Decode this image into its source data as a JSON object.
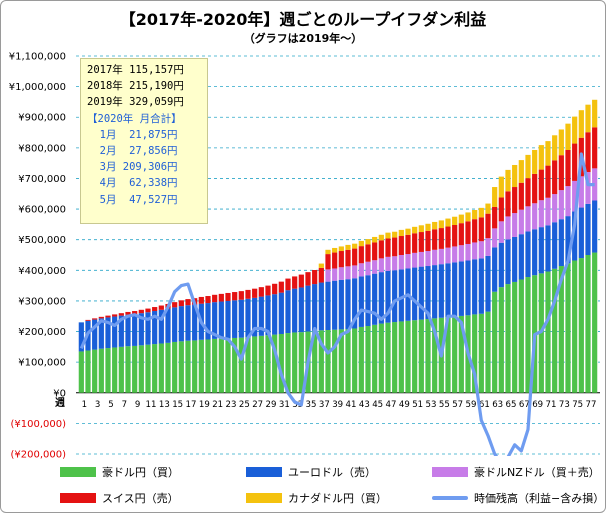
{
  "title": "【2017年-2020年】週ごとのループイフダン利益",
  "subtitle": "（グラフは2019年〜）",
  "summary": {
    "lines": [
      {
        "text": "2017年 115,157円",
        "accent": false
      },
      {
        "text": "2018年 215,190円",
        "accent": false
      },
      {
        "text": "2019年 329,059円",
        "accent": false
      },
      {
        "text": "【2020年 月合計】",
        "accent": true
      },
      {
        "text": "  1月  21,875円",
        "accent": true
      },
      {
        "text": "  2月  27,856円",
        "accent": true
      },
      {
        "text": "  3月 209,306円",
        "accent": true
      },
      {
        "text": "  4月  62,338円",
        "accent": true
      },
      {
        "text": "  5月  47,527円",
        "accent": true
      }
    ]
  },
  "legend": [
    {
      "name": "豪ドル円（買）",
      "color": "#4ec24a",
      "kind": "bar"
    },
    {
      "name": "ユーロドル（売）",
      "color": "#1a5fd8",
      "kind": "bar"
    },
    {
      "name": "豪ドルNZドル（買＋売）",
      "color": "#c77ce8",
      "kind": "bar"
    },
    {
      "name": "スイス円（売）",
      "color": "#e41212",
      "kind": "bar"
    },
    {
      "name": "カナダドル円（買）",
      "color": "#f4c20e",
      "kind": "bar"
    },
    {
      "name": "時価残高（利益−含み損）",
      "color": "#6f9cf0",
      "kind": "line"
    }
  ],
  "chart_data": {
    "type": "bar",
    "stacked": true,
    "x_axis_title": "週",
    "y_ticks": [
      "¥1,100,000",
      "¥1,000,000",
      "¥900,000",
      "¥800,000",
      "¥700,000",
      "¥600,000",
      "¥500,000",
      "¥400,000",
      "¥300,000",
      "¥200,000",
      "¥100,000",
      "¥0",
      "(¥100,000)",
      "(¥200,000)"
    ],
    "ylim": [
      -200000,
      1100000
    ],
    "grid": true,
    "legend_position": "bottom",
    "categories": [
      1,
      2,
      3,
      4,
      5,
      6,
      7,
      8,
      9,
      10,
      11,
      12,
      13,
      14,
      15,
      16,
      17,
      18,
      19,
      20,
      21,
      22,
      23,
      24,
      25,
      26,
      27,
      28,
      29,
      30,
      31,
      32,
      33,
      34,
      35,
      36,
      37,
      38,
      39,
      40,
      41,
      42,
      43,
      44,
      45,
      46,
      47,
      48,
      49,
      50,
      51,
      52,
      53,
      54,
      55,
      56,
      57,
      58,
      59,
      60,
      61,
      62,
      63,
      64,
      65,
      66,
      67,
      68,
      69,
      70,
      71,
      72,
      73,
      74,
      75,
      76,
      77,
      78
    ],
    "series": [
      {
        "name": "豪ドル円（買）",
        "type": "bar",
        "values": [
          135000,
          138000,
          141000,
          144000,
          146000,
          148000,
          150000,
          152000,
          153000,
          155000,
          157000,
          159000,
          161000,
          163000,
          166000,
          168000,
          170000,
          171000,
          173000,
          174000,
          176000,
          177000,
          178000,
          179000,
          180000,
          182000,
          184000,
          186000,
          188000,
          190000,
          192000,
          195000,
          197000,
          198000,
          200000,
          202000,
          204000,
          205000,
          206000,
          207000,
          208000,
          210000,
          215000,
          218000,
          222000,
          226000,
          229000,
          231000,
          233000,
          235000,
          237000,
          239000,
          241000,
          243000,
          245000,
          247000,
          249000,
          251000,
          253000,
          256000,
          258000,
          265000,
          330000,
          345000,
          355000,
          362000,
          370000,
          378000,
          384000,
          390000,
          396000,
          405000,
          414000,
          423000,
          432000,
          440000,
          450000,
          458000
        ]
      },
      {
        "name": "ユーロドル（売）",
        "type": "bar",
        "values": [
          95000,
          97000,
          98000,
          99000,
          100000,
          101000,
          102000,
          103000,
          104000,
          105000,
          106000,
          108000,
          110000,
          112000,
          113000,
          115000,
          116000,
          117000,
          118000,
          119000,
          120000,
          121000,
          122000,
          123000,
          124000,
          125000,
          126000,
          128000,
          130000,
          132000,
          135000,
          140000,
          143000,
          146000,
          150000,
          153000,
          156000,
          158000,
          160000,
          162000,
          163000,
          164000,
          165000,
          166000,
          167000,
          168000,
          169000,
          169000,
          170000,
          171000,
          172000,
          173000,
          173000,
          174000,
          175000,
          176000,
          177000,
          178000,
          179000,
          180000,
          181000,
          182000,
          145000,
          145000,
          146000,
          147000,
          148000,
          149000,
          150000,
          151000,
          151000,
          152000,
          153000,
          154000,
          160000,
          165000,
          167000,
          170000
        ]
      },
      {
        "name": "豪ドルNZドル（買＋売）",
        "type": "bar",
        "values": [
          0,
          0,
          0,
          0,
          0,
          0,
          0,
          0,
          0,
          0,
          0,
          0,
          0,
          0,
          0,
          0,
          0,
          0,
          0,
          0,
          0,
          0,
          0,
          0,
          0,
          0,
          0,
          0,
          0,
          0,
          0,
          0,
          0,
          0,
          0,
          0,
          0,
          40000,
          40000,
          41000,
          42000,
          42000,
          43000,
          44000,
          44000,
          45000,
          46000,
          46000,
          47000,
          47000,
          48000,
          48000,
          49000,
          50000,
          50000,
          51000,
          52000,
          53000,
          54000,
          55000,
          56000,
          58000,
          62000,
          70000,
          75000,
          78000,
          80000,
          82000,
          85000,
          88000,
          90000,
          92000,
          95000,
          98000,
          100000,
          102000,
          104000,
          105000
        ]
      },
      {
        "name": "スイス円（売）",
        "type": "bar",
        "values": [
          0,
          3000,
          4000,
          5000,
          6000,
          7000,
          8000,
          9000,
          10000,
          11000,
          12000,
          13000,
          14000,
          15000,
          17000,
          19000,
          20000,
          21000,
          22000,
          23000,
          24000,
          25000,
          26000,
          27000,
          28000,
          29000,
          30000,
          31000,
          32000,
          34000,
          36000,
          38000,
          40000,
          42000,
          44000,
          46000,
          48000,
          50000,
          52000,
          53000,
          54000,
          55000,
          56000,
          57000,
          58000,
          59000,
          60000,
          61000,
          62000,
          63000,
          64000,
          65000,
          66000,
          67000,
          68000,
          69000,
          70000,
          72000,
          74000,
          76000,
          78000,
          80000,
          70000,
          78000,
          82000,
          85000,
          88000,
          92000,
          96000,
          100000,
          105000,
          110000,
          114000,
          118000,
          122000,
          126000,
          130000,
          134000
        ]
      },
      {
        "name": "カナダドル円（買）",
        "type": "bar",
        "values": [
          0,
          0,
          0,
          0,
          0,
          0,
          0,
          0,
          0,
          0,
          0,
          0,
          0,
          0,
          0,
          0,
          0,
          0,
          0,
          0,
          0,
          0,
          0,
          0,
          0,
          0,
          0,
          0,
          0,
          0,
          0,
          0,
          0,
          0,
          0,
          0,
          14000,
          14000,
          15000,
          15000,
          16000,
          16000,
          17000,
          17000,
          18000,
          18000,
          19000,
          19000,
          20000,
          20000,
          21000,
          22000,
          23000,
          24000,
          25000,
          26000,
          27000,
          28000,
          29000,
          30000,
          31000,
          33000,
          65000,
          68000,
          70000,
          72000,
          74000,
          76000,
          78000,
          80000,
          80000,
          82000,
          84000,
          86000,
          88000,
          90000,
          90000,
          90000
        ]
      },
      {
        "name": "時価残高（利益−含み損）",
        "type": "line",
        "values": [
          145000,
          195000,
          215000,
          235000,
          230000,
          220000,
          240000,
          250000,
          255000,
          245000,
          240000,
          250000,
          240000,
          280000,
          330000,
          350000,
          355000,
          290000,
          230000,
          200000,
          190000,
          180000,
          175000,
          150000,
          110000,
          180000,
          210000,
          210000,
          200000,
          140000,
          60000,
          0,
          -30000,
          -40000,
          100000,
          210000,
          160000,
          130000,
          150000,
          190000,
          200000,
          240000,
          270000,
          265000,
          260000,
          240000,
          260000,
          300000,
          310000,
          320000,
          300000,
          280000,
          260000,
          200000,
          120000,
          250000,
          250000,
          230000,
          130000,
          60000,
          -90000,
          -140000,
          -200000,
          -230000,
          -210000,
          -170000,
          -190000,
          -120000,
          190000,
          200000,
          240000,
          300000,
          370000,
          430000,
          550000,
          780000,
          680000,
          680000
        ]
      }
    ]
  }
}
